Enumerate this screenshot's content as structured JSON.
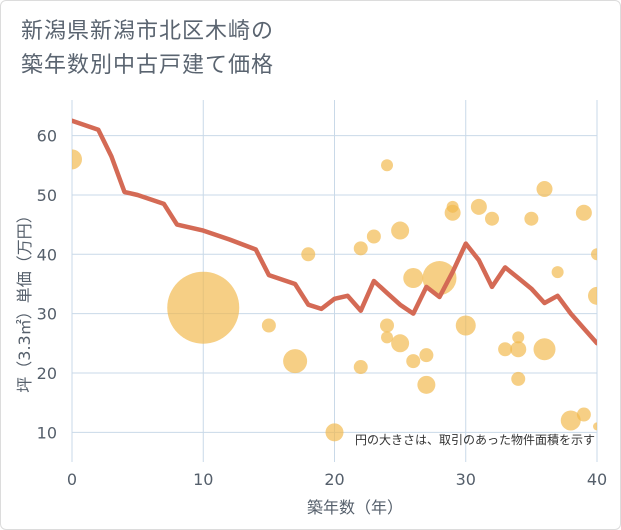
{
  "title_line1": "新潟県新潟市北区木崎の",
  "title_line2": "築年数別中古戸建て価格",
  "chart_data": {
    "type": "scatter",
    "xlabel": "築年数（年）",
    "ylabel": "坪（3.3㎡）単価（万円）",
    "xlim": [
      0,
      40
    ],
    "ylim": [
      5,
      66
    ],
    "xticks": [
      0,
      10,
      20,
      30,
      40
    ],
    "yticks": [
      10,
      20,
      30,
      40,
      50,
      60
    ],
    "note": "円の大きさは、取引のあった物件面積を示す",
    "colors": {
      "bubble": "#f2b84b",
      "line": "#d46a55",
      "grid": "#c9d9e8"
    },
    "trend_line": {
      "x": [
        0,
        2,
        3,
        4,
        5,
        7,
        8,
        10,
        12,
        14,
        15,
        17,
        18,
        19,
        20,
        21,
        22,
        23,
        24,
        25,
        26,
        27,
        28,
        29,
        30,
        31,
        32,
        33,
        34,
        35,
        36,
        37,
        38,
        39,
        40
      ],
      "y": [
        62.5,
        61,
        56.5,
        50.5,
        50,
        48.5,
        45,
        44,
        42.5,
        40.8,
        36.5,
        35,
        31.5,
        30.8,
        32.5,
        33,
        30.5,
        35.5,
        33.5,
        31.5,
        30,
        34.5,
        32.8,
        37,
        41.8,
        39,
        34.5,
        37.8,
        36,
        34.2,
        31.8,
        33,
        30,
        27.5,
        25
      ]
    },
    "bubbles": [
      {
        "x": 0,
        "y": 56,
        "size": 10
      },
      {
        "x": 10,
        "y": 31,
        "size": 36
      },
      {
        "x": 15,
        "y": 28,
        "size": 7
      },
      {
        "x": 17,
        "y": 22,
        "size": 12
      },
      {
        "x": 18,
        "y": 40,
        "size": 7
      },
      {
        "x": 20,
        "y": 10,
        "size": 9
      },
      {
        "x": 22,
        "y": 21,
        "size": 7
      },
      {
        "x": 22,
        "y": 41,
        "size": 7
      },
      {
        "x": 23,
        "y": 43,
        "size": 7
      },
      {
        "x": 24,
        "y": 55,
        "size": 6
      },
      {
        "x": 24,
        "y": 28,
        "size": 7
      },
      {
        "x": 24,
        "y": 26,
        "size": 6
      },
      {
        "x": 25,
        "y": 44,
        "size": 9
      },
      {
        "x": 25,
        "y": 25,
        "size": 9
      },
      {
        "x": 26,
        "y": 36,
        "size": 10
      },
      {
        "x": 26,
        "y": 22,
        "size": 7
      },
      {
        "x": 27,
        "y": 23,
        "size": 7
      },
      {
        "x": 27,
        "y": 18,
        "size": 9
      },
      {
        "x": 28,
        "y": 36,
        "size": 17
      },
      {
        "x": 29,
        "y": 47,
        "size": 8
      },
      {
        "x": 29,
        "y": 48,
        "size": 6
      },
      {
        "x": 30,
        "y": 28,
        "size": 10
      },
      {
        "x": 31,
        "y": 48,
        "size": 8
      },
      {
        "x": 32,
        "y": 46,
        "size": 7
      },
      {
        "x": 33,
        "y": 24,
        "size": 7
      },
      {
        "x": 34,
        "y": 26,
        "size": 6
      },
      {
        "x": 34,
        "y": 24,
        "size": 8
      },
      {
        "x": 34,
        "y": 19,
        "size": 7
      },
      {
        "x": 35,
        "y": 46,
        "size": 7
      },
      {
        "x": 36,
        "y": 51,
        "size": 8
      },
      {
        "x": 36,
        "y": 24,
        "size": 11
      },
      {
        "x": 37,
        "y": 37,
        "size": 6
      },
      {
        "x": 38,
        "y": 12,
        "size": 10
      },
      {
        "x": 39,
        "y": 47,
        "size": 8
      },
      {
        "x": 39,
        "y": 13,
        "size": 7
      },
      {
        "x": 40,
        "y": 40,
        "size": 6
      },
      {
        "x": 40,
        "y": 33,
        "size": 9
      },
      {
        "x": 40,
        "y": 11,
        "size": 4
      }
    ]
  }
}
